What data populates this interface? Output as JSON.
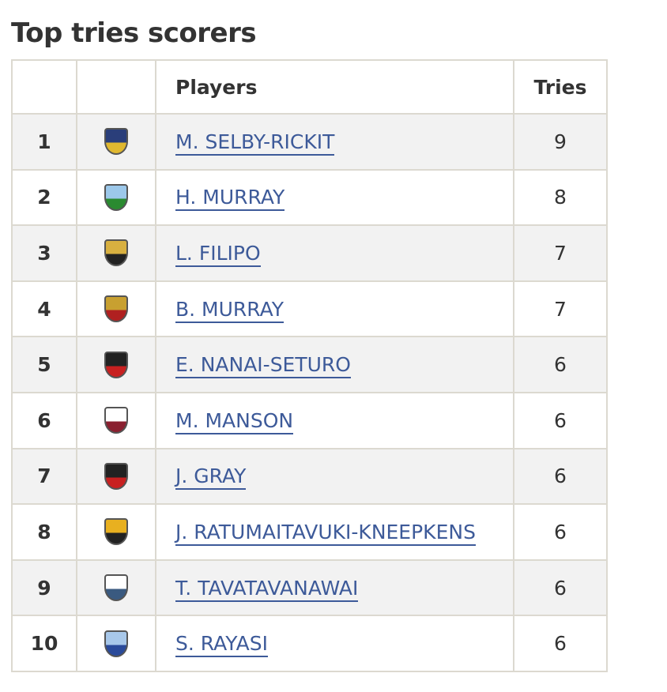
{
  "title": "Top tries scorers",
  "columns": {
    "rank": "",
    "logo": "",
    "players": "Players",
    "tries": "Tries"
  },
  "rows": [
    {
      "rank": "1",
      "player": "M. SELBY-RICKIT",
      "tries": "9",
      "logo_icon": "team-logo-steamers",
      "logo_color": "#2a3e7a",
      "logo_accent": "#e0b830"
    },
    {
      "rank": "2",
      "player": "H. MURRAY",
      "tries": "8",
      "logo_icon": "team-logo-tree-shield",
      "logo_color": "#9cc8ea",
      "logo_accent": "#2a8a30"
    },
    {
      "rank": "3",
      "player": "L. FILIPO",
      "tries": "7",
      "logo_icon": "team-logo-lions",
      "logo_color": "#d8b040",
      "logo_accent": "#222222"
    },
    {
      "rank": "4",
      "player": "B. MURRAY",
      "tries": "7",
      "logo_icon": "team-logo-red-gold-crest",
      "logo_color": "#c8a030",
      "logo_accent": "#b02020"
    },
    {
      "rank": "5",
      "player": "E. NANAI-SETURO",
      "tries": "6",
      "logo_icon": "team-logo-red-black-shield",
      "logo_color": "#222222",
      "logo_accent": "#c82020"
    },
    {
      "rank": "6",
      "player": "M. MANSON",
      "tries": "6",
      "logo_icon": "team-logo-stags",
      "logo_color": "#ffffff",
      "logo_accent": "#8a2030"
    },
    {
      "rank": "7",
      "player": "J. GRAY",
      "tries": "6",
      "logo_icon": "team-logo-red-black-shield",
      "logo_color": "#222222",
      "logo_accent": "#c82020"
    },
    {
      "rank": "8",
      "player": "J. RATUMAITAVUKI-KNEEPKENS",
      "tries": "6",
      "logo_icon": "team-logo-bulls",
      "logo_color": "#e8b020",
      "logo_accent": "#222222"
    },
    {
      "rank": "9",
      "player": "T. TAVATAVANAWAI",
      "tries": "6",
      "logo_icon": "team-logo-shark",
      "logo_color": "#ffffff",
      "logo_accent": "#3a5a80"
    },
    {
      "rank": "10",
      "player": "S. RAYASI",
      "tries": "6",
      "logo_icon": "team-logo-blue-crest",
      "logo_color": "#a8c8ea",
      "logo_accent": "#2a4a9a"
    }
  ],
  "colors": {
    "link": "#3d5a99",
    "border": "#dcd9d0",
    "row_alt": "#f2f2f2"
  }
}
